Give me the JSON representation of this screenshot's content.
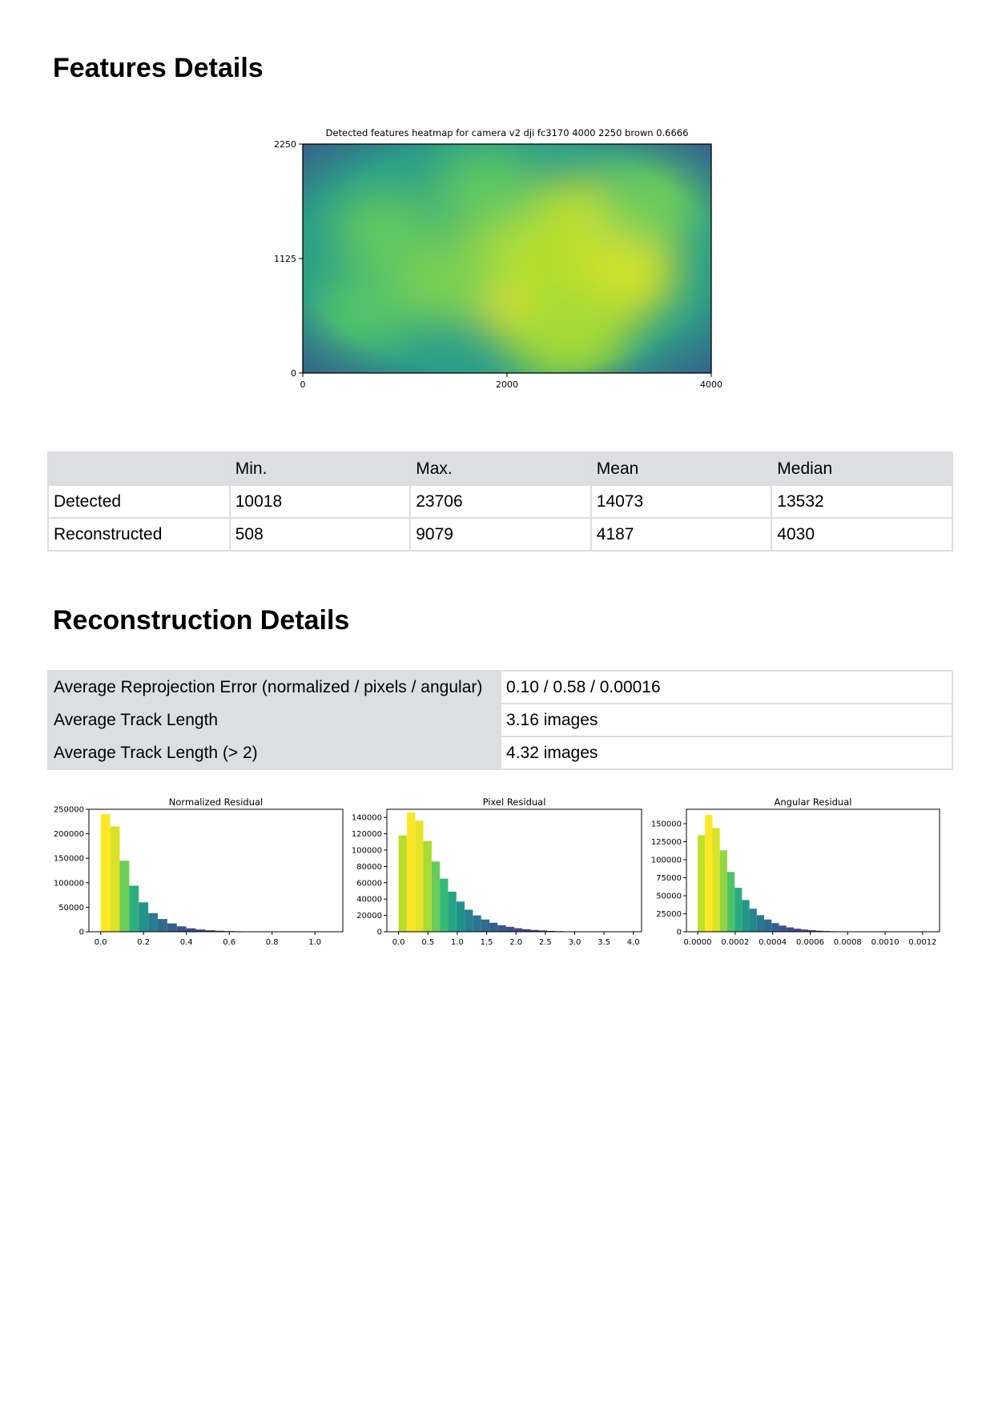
{
  "features": {
    "title": "Features Details",
    "stats_table": {
      "headers": [
        "",
        "Min.",
        "Max.",
        "Mean",
        "Median"
      ],
      "rows": [
        {
          "label": "Detected",
          "values": [
            "10018",
            "23706",
            "14073",
            "13532"
          ]
        },
        {
          "label": "Reconstructed",
          "values": [
            "508",
            "9079",
            "4187",
            "4030"
          ]
        }
      ]
    }
  },
  "reconstruction": {
    "title": "Reconstruction Details",
    "rows": [
      {
        "label": "Average Reprojection Error (normalized / pixels / angular)",
        "value": "0.10 / 0.58 / 0.00016"
      },
      {
        "label": "Average Track Length",
        "value": "3.16 images"
      },
      {
        "label": "Average Track Length (> 2)",
        "value": "4.32 images"
      }
    ]
  },
  "chart_data": [
    {
      "type": "heatmap",
      "title": "Detected features heatmap for camera v2 dji fc3170 4000 2250 brown 0.6666",
      "x_ticks": [
        "0",
        "2000",
        "4000"
      ],
      "y_ticks": [
        "0",
        "1125",
        "2250"
      ],
      "xlim": [
        0,
        4000
      ],
      "ylim": [
        0,
        2250
      ],
      "colormap": "viridis",
      "hotspots": [
        {
          "x": 2400,
          "y": 800,
          "intensity": 1.0
        },
        {
          "x": 2800,
          "y": 1400,
          "intensity": 0.85
        },
        {
          "x": 3000,
          "y": 1000,
          "intensity": 0.85
        },
        {
          "x": 2200,
          "y": 1300,
          "intensity": 0.75
        },
        {
          "x": 2600,
          "y": 400,
          "intensity": 0.7
        },
        {
          "x": 1400,
          "y": 900,
          "intensity": 0.55
        },
        {
          "x": 800,
          "y": 1400,
          "intensity": 0.45
        },
        {
          "x": 3400,
          "y": 1700,
          "intensity": 0.5
        },
        {
          "x": 600,
          "y": 600,
          "intensity": 0.4
        },
        {
          "x": 1800,
          "y": 1800,
          "intensity": 0.45
        }
      ]
    },
    {
      "type": "bar",
      "title": "Normalized Residual",
      "bin_start": 0.0,
      "bin_width": 0.0444,
      "values": [
        240000,
        215000,
        145000,
        94000,
        60000,
        38000,
        26000,
        17000,
        11000,
        7000,
        4500,
        3000,
        2000,
        1300,
        900,
        600,
        400,
        250,
        150,
        100,
        60,
        40,
        20,
        10,
        5
      ],
      "xlim": [
        -0.055,
        1.13
      ],
      "ylim": [
        0,
        250000
      ],
      "x_ticks": [
        "0.0",
        "0.2",
        "0.4",
        "0.6",
        "0.8",
        "1.0"
      ],
      "x_tick_values": [
        0.0,
        0.2,
        0.4,
        0.6,
        0.8,
        1.0
      ],
      "y_ticks": [
        "0",
        "50000",
        "100000",
        "150000",
        "200000",
        "250000"
      ],
      "y_tick_values": [
        0,
        50000,
        100000,
        150000,
        200000,
        250000
      ]
    },
    {
      "type": "bar",
      "title": "Pixel Residual",
      "bin_start": 0.0,
      "bin_width": 0.1406,
      "values": [
        118000,
        146000,
        136000,
        111000,
        86000,
        65000,
        49000,
        37000,
        27000,
        20000,
        15000,
        11000,
        8000,
        6000,
        4300,
        3100,
        2200,
        1500,
        1000,
        700,
        450,
        300,
        200,
        120,
        70
      ],
      "xlim": [
        -0.2,
        4.14
      ],
      "ylim": [
        0,
        150000
      ],
      "x_ticks": [
        "0.0",
        "0.5",
        "1.0",
        "1.5",
        "2.0",
        "2.5",
        "3.0",
        "3.5",
        "4.0"
      ],
      "x_tick_values": [
        0.0,
        0.5,
        1.0,
        1.5,
        2.0,
        2.5,
        3.0,
        3.5,
        4.0
      ],
      "y_ticks": [
        "0",
        "20000",
        "40000",
        "60000",
        "80000",
        "100000",
        "120000",
        "140000"
      ],
      "y_tick_values": [
        0,
        20000,
        40000,
        60000,
        80000,
        100000,
        120000,
        140000
      ]
    },
    {
      "type": "bar",
      "title": "Angular Residual",
      "bin_start": 0.0,
      "bin_width": 3.94e-05,
      "values": [
        134000,
        162000,
        144000,
        113000,
        83000,
        61000,
        44000,
        32000,
        23000,
        17000,
        12000,
        8500,
        6000,
        4200,
        3000,
        2100,
        1400,
        950,
        650,
        420,
        270,
        170,
        100,
        60,
        30
      ],
      "xlim": [
        -6e-05,
        0.00129
      ],
      "ylim": [
        0,
        170000
      ],
      "x_ticks": [
        "0.0000",
        "0.0002",
        "0.0004",
        "0.0006",
        "0.0008",
        "0.0010",
        "0.0012"
      ],
      "x_tick_values": [
        0.0,
        0.0002,
        0.0004,
        0.0006,
        0.0008,
        0.001,
        0.0012
      ],
      "y_ticks": [
        "0",
        "25000",
        "50000",
        "75000",
        "100000",
        "125000",
        "150000"
      ],
      "y_tick_values": [
        0,
        25000,
        50000,
        75000,
        100000,
        125000,
        150000
      ]
    }
  ]
}
